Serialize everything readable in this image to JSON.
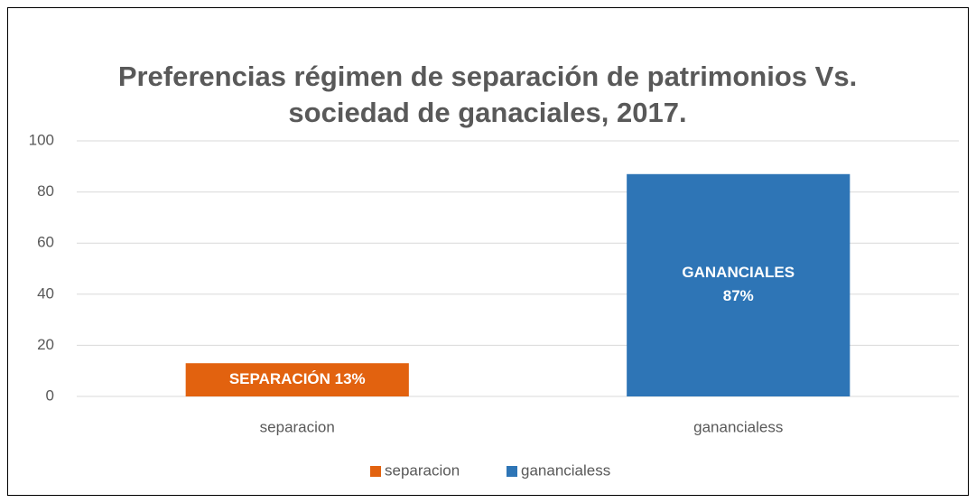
{
  "chart_data": {
    "type": "bar",
    "title": [
      "Preferencias régimen de separación de patrimonios Vs.",
      "sociedad de ganaciales, 2017."
    ],
    "categories": [
      "separacion",
      "ganancialess"
    ],
    "values": [
      13,
      87
    ],
    "value_labels": [
      "SEPARACIÓN 13%",
      "GANANCIALES\n87%"
    ],
    "colors": [
      "#e2620f",
      "#2e75b6"
    ],
    "ylim": [
      0,
      100
    ],
    "yticks": [
      0,
      20,
      40,
      60,
      80,
      100
    ],
    "grid": true,
    "legend": "bottom"
  }
}
